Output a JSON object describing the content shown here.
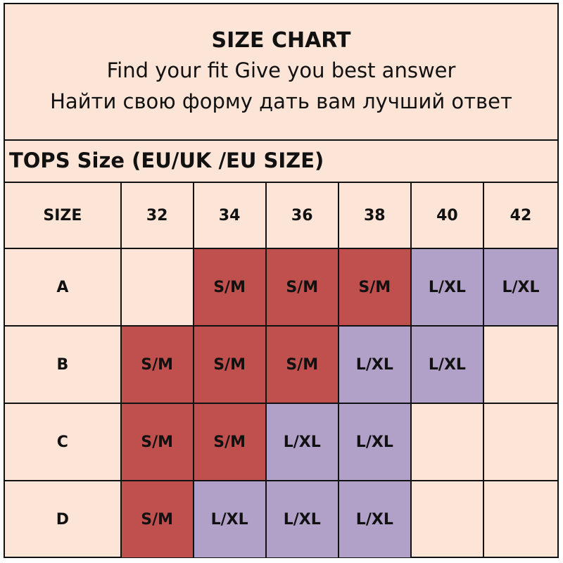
{
  "header": {
    "title": "SIZE CHART",
    "subtitle_en": "Find your fit Give you best answer",
    "subtitle_ru": "Найти свою форму дать вам лучший ответ"
  },
  "section_title": "TOPS Size (EU/UK /EU SIZE)",
  "colors": {
    "background": "#fce4d6",
    "sm": "#c0504d",
    "lxl": "#b1a0c7"
  },
  "table": {
    "columns": [
      "SIZE",
      "32",
      "34",
      "36",
      "38",
      "40",
      "42"
    ],
    "rows": [
      {
        "label": "A",
        "cells": [
          "",
          "S/M",
          "S/M",
          "S/M",
          "L/XL",
          "L/XL"
        ]
      },
      {
        "label": "B",
        "cells": [
          "S/M",
          "S/M",
          "S/M",
          "L/XL",
          "L/XL",
          ""
        ]
      },
      {
        "label": "C",
        "cells": [
          "S/M",
          "S/M",
          "L/XL",
          "L/XL",
          "",
          ""
        ]
      },
      {
        "label": "D",
        "cells": [
          "S/M",
          "L/XL",
          "L/XL",
          "L/XL",
          "",
          ""
        ]
      }
    ]
  }
}
